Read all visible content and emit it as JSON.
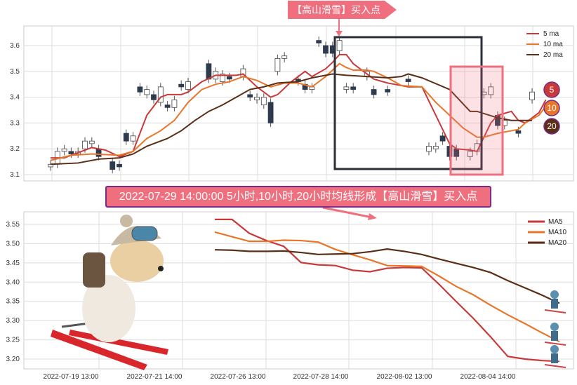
{
  "top_label": "【高山滑雪】买入点",
  "banner": "2022-07-29 14:00:00 5小时,10小时,20小时均线形成【高山滑雪】买入点",
  "colors": {
    "ma5": "#c83a3a",
    "ma10": "#e8762a",
    "ma20": "#5a2e17",
    "up": "#ffffff",
    "down": "#2e3a4e",
    "accent": "#ef6f7e",
    "box": "#2b2f3a"
  },
  "badges": [
    "5",
    "10",
    "20"
  ],
  "chart_data": [
    {
      "type": "candlestick",
      "ylim": [
        3.08,
        3.68
      ],
      "yticks": [
        "3.1",
        "3.2",
        "3.3",
        "3.4",
        "3.5",
        "3.6"
      ],
      "legend": [
        "5 ma",
        "10 ma",
        "20 ma"
      ],
      "legend_position": "top-right",
      "grid": true,
      "candles": [
        [
          3.13,
          3.14
        ],
        [
          3.14,
          3.19
        ],
        [
          3.19,
          3.2
        ],
        [
          3.19,
          3.18
        ],
        [
          3.18,
          3.19
        ],
        [
          3.2,
          3.23
        ],
        [
          3.22,
          3.23
        ],
        [
          3.2,
          3.17
        ],
        null,
        [
          3.15,
          3.12
        ],
        [
          3.14,
          3.13
        ],
        [
          3.26,
          3.23
        ],
        [
          3.23,
          3.25
        ],
        [
          3.44,
          3.42
        ],
        [
          3.41,
          3.43
        ],
        [
          3.41,
          3.39
        ],
        [
          3.38,
          3.44
        ],
        [
          3.37,
          3.36
        ],
        [
          3.36,
          3.39
        ],
        [
          3.45,
          3.44
        ],
        [
          3.43,
          3.46
        ],
        null,
        null,
        [
          3.53,
          3.47
        ],
        [
          3.47,
          3.5
        ],
        [
          3.46,
          3.49
        ],
        [
          3.48,
          3.47
        ],
        null,
        [
          3.48,
          3.51
        ],
        [
          3.41,
          3.4
        ],
        [
          3.39,
          3.4
        ],
        [
          3.37,
          3.4
        ],
        [
          3.38,
          3.3
        ],
        [
          3.5,
          3.55
        ],
        [
          3.55,
          3.56
        ],
        null,
        [
          3.47,
          3.46
        ],
        [
          3.45,
          3.43
        ],
        [
          3.43,
          3.44
        ],
        [
          3.62,
          3.61
        ],
        [
          3.6,
          3.57
        ],
        [
          3.6,
          3.57
        ],
        [
          3.58,
          3.62
        ],
        [
          3.43,
          3.44
        ],
        [
          3.44,
          3.43
        ],
        null,
        [
          3.48,
          3.5
        ],
        [
          3.43,
          3.41
        ],
        null,
        [
          3.43,
          3.42
        ],
        null,
        null,
        [
          3.47,
          3.46
        ],
        null,
        null,
        [
          3.19,
          3.21
        ],
        [
          3.2,
          3.21
        ],
        [
          3.25,
          3.23
        ],
        [
          3.21,
          3.17
        ],
        [
          3.2,
          3.17
        ],
        null,
        [
          3.17,
          3.19
        ],
        [
          3.19,
          3.22
        ],
        [
          3.41,
          3.42
        ],
        [
          3.41,
          3.44
        ],
        [
          3.33,
          3.29
        ],
        [
          3.29,
          3.31
        ],
        null,
        [
          3.27,
          3.26
        ],
        null,
        [
          3.39,
          3.42
        ]
      ],
      "series": [
        {
          "name": "5 ma",
          "points": [
            [
              0,
              3.165
            ],
            [
              2,
              3.165
            ],
            [
              6,
              3.205
            ],
            [
              8,
              3.195
            ],
            [
              10,
              3.17
            ],
            [
              12,
              3.19
            ],
            [
              14,
              3.33
            ],
            [
              16,
              3.4
            ],
            [
              17,
              3.41
            ],
            [
              19,
              3.41
            ],
            [
              20,
              3.42
            ],
            [
              22,
              3.46
            ],
            [
              24,
              3.485
            ],
            [
              27,
              3.485
            ],
            [
              28,
              3.49
            ],
            [
              30,
              3.44
            ],
            [
              32,
              3.4
            ],
            [
              33,
              3.41
            ],
            [
              35,
              3.46
            ],
            [
              37,
              3.5
            ],
            [
              38,
              3.48
            ],
            [
              40,
              3.51
            ],
            [
              41,
              3.535
            ],
            [
              42,
              3.565
            ],
            [
              43,
              3.565
            ],
            [
              44,
              3.53
            ],
            [
              46,
              3.49
            ],
            [
              47,
              3.47
            ],
            [
              49,
              3.455
            ],
            [
              50,
              3.45
            ],
            [
              52,
              3.44
            ],
            [
              54,
              3.44
            ],
            [
              56,
              3.33
            ],
            [
              58,
              3.22
            ],
            [
              59,
              3.2
            ],
            [
              61,
              3.195
            ],
            [
              62,
              3.19
            ],
            [
              64,
              3.3
            ],
            [
              65,
              3.33
            ],
            [
              67,
              3.345
            ],
            [
              68,
              3.31
            ],
            [
              69,
              3.3
            ],
            [
              71,
              3.34
            ],
            [
              72,
              3.39
            ]
          ]
        },
        {
          "name": "10 ma",
          "points": [
            [
              0,
              3.155
            ],
            [
              3,
              3.175
            ],
            [
              6,
              3.18
            ],
            [
              10,
              3.175
            ],
            [
              12,
              3.19
            ],
            [
              14,
              3.24
            ],
            [
              16,
              3.27
            ],
            [
              18,
              3.31
            ],
            [
              20,
              3.38
            ],
            [
              22,
              3.43
            ],
            [
              24,
              3.45
            ],
            [
              26,
              3.46
            ],
            [
              28,
              3.48
            ],
            [
              30,
              3.465
            ],
            [
              32,
              3.44
            ],
            [
              34,
              3.455
            ],
            [
              36,
              3.455
            ],
            [
              38,
              3.44
            ],
            [
              40,
              3.48
            ],
            [
              42,
              3.53
            ],
            [
              43,
              3.515
            ],
            [
              44,
              3.505
            ],
            [
              46,
              3.505
            ],
            [
              47,
              3.5
            ],
            [
              49,
              3.475
            ],
            [
              51,
              3.445
            ],
            [
              54,
              3.44
            ],
            [
              56,
              3.38
            ],
            [
              58,
              3.33
            ],
            [
              60,
              3.28
            ],
            [
              62,
              3.245
            ],
            [
              63,
              3.245
            ],
            [
              65,
              3.26
            ],
            [
              67,
              3.27
            ],
            [
              68,
              3.275
            ],
            [
              69,
              3.3
            ],
            [
              71,
              3.33
            ],
            [
              72,
              3.365
            ]
          ]
        },
        {
          "name": "20 ma",
          "points": [
            [
              0,
              3.14
            ],
            [
              4,
              3.145
            ],
            [
              7,
              3.16
            ],
            [
              10,
              3.165
            ],
            [
              12,
              3.18
            ],
            [
              14,
              3.21
            ],
            [
              17,
              3.24
            ],
            [
              19,
              3.27
            ],
            [
              21,
              3.31
            ],
            [
              23,
              3.345
            ],
            [
              25,
              3.37
            ],
            [
              27,
              3.4
            ],
            [
              29,
              3.43
            ],
            [
              31,
              3.44
            ],
            [
              33,
              3.455
            ],
            [
              36,
              3.46
            ],
            [
              38,
              3.475
            ],
            [
              41,
              3.49
            ],
            [
              43,
              3.485
            ],
            [
              46,
              3.48
            ],
            [
              49,
              3.475
            ],
            [
              51,
              3.48
            ],
            [
              52,
              3.49
            ],
            [
              54,
              3.475
            ],
            [
              58,
              3.43
            ],
            [
              61,
              3.345
            ],
            [
              62,
              3.345
            ],
            [
              65,
              3.32
            ],
            [
              67,
              3.31
            ],
            [
              70,
              3.31
            ]
          ]
        }
      ]
    },
    {
      "type": "line",
      "ylim": [
        3.18,
        3.585
      ],
      "yticks": [
        "3.20",
        "3.25",
        "3.30",
        "3.35",
        "3.40",
        "3.45",
        "3.50",
        "3.55"
      ],
      "xticks": [
        "2022-07-19 13:00",
        "2022-07-21 14:00",
        "2022-07-26 13:00",
        "2022-07-28 14:00",
        "2022-08-02 13:00",
        "2022-08-04 14:00"
      ],
      "legend_position": "top-right",
      "grid": true,
      "series": [
        {
          "name": "MA5",
          "values": [
            3.563,
            3.563,
            3.527,
            3.508,
            3.493,
            3.451,
            3.445,
            3.443,
            3.431,
            3.427,
            3.436,
            3.438,
            3.437,
            3.395,
            3.35,
            3.306,
            3.258,
            3.207,
            3.2,
            3.196,
            3.194
          ]
        },
        {
          "name": "MA10",
          "values": [
            3.53,
            3.518,
            3.506,
            3.506,
            3.509,
            3.508,
            3.504,
            3.485,
            3.471,
            3.458,
            3.443,
            3.442,
            3.441,
            3.416,
            3.389,
            3.367,
            3.34,
            3.315,
            3.292,
            3.268,
            3.245
          ]
        },
        {
          "name": "MA20",
          "values": [
            3.484,
            3.483,
            3.48,
            3.48,
            3.481,
            3.477,
            3.472,
            3.473,
            3.474,
            3.479,
            3.486,
            3.48,
            3.472,
            3.46,
            3.449,
            3.438,
            3.425,
            3.404,
            3.385,
            3.366,
            3.345
          ]
        }
      ]
    }
  ]
}
